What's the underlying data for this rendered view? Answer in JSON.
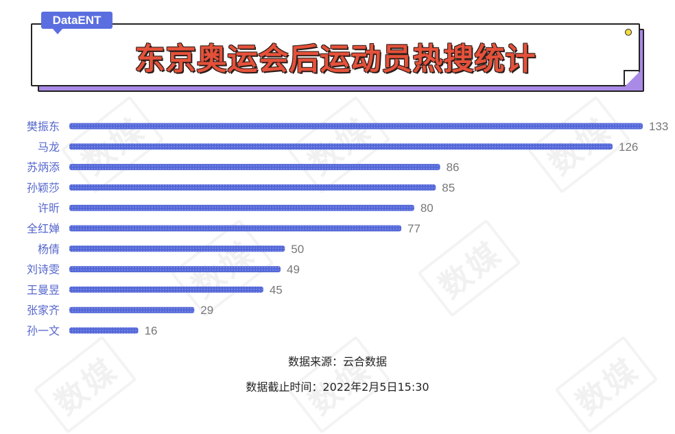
{
  "brand_tag": "DataENT",
  "title": "东京奥运会后运动员热搜统计",
  "source_text": "数据来源：云合数据",
  "cutoff_text": "数据截止时间：2022年2月5日15:30",
  "watermark": "数媒",
  "colors": {
    "bar": "#5468d8",
    "label": "#5566cc",
    "value": "#777777",
    "title": "#e5513a",
    "accent": "#a98ae6"
  },
  "chart_data": {
    "type": "bar",
    "orientation": "horizontal",
    "categories": [
      "樊振东",
      "马龙",
      "苏炳添",
      "孙颖莎",
      "许昕",
      "全红婵",
      "杨倩",
      "刘诗雯",
      "王曼昱",
      "张家齐",
      "孙一文"
    ],
    "values": [
      133,
      126,
      86,
      85,
      80,
      77,
      50,
      49,
      45,
      29,
      16
    ],
    "xlim": [
      0,
      133
    ],
    "grid": false,
    "legend": "none"
  }
}
